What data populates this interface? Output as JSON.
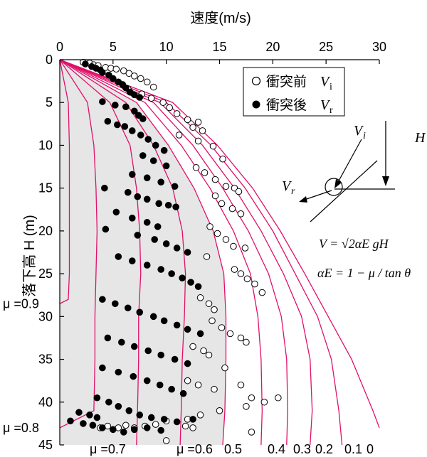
{
  "chart_data": {
    "type": "scatter",
    "title": "",
    "xlabel": "速度(m/s)",
    "ylabel": "落下高 H (m)",
    "xlim": [
      0,
      30
    ],
    "ylim": [
      0,
      45
    ],
    "y_inverted": true,
    "x_axis_position": "top",
    "x_ticks": [
      "0",
      "5",
      "10",
      "15",
      "20",
      "25",
      "30"
    ],
    "y_ticks": [
      "0",
      "5",
      "10",
      "15",
      "20",
      "25",
      "30",
      "35",
      "40",
      "45"
    ],
    "legend": {
      "placement": "top-right",
      "entries": [
        {
          "symbol": "○",
          "text": "衝突前",
          "var": "V",
          "sub": "i"
        },
        {
          "symbol": "●",
          "text": "衝突後",
          "var": "V",
          "sub": "r"
        }
      ]
    },
    "curve_color": "#e0106a",
    "shaded_region_color": "#e6e6e6",
    "mu_labels_left": [
      {
        "text": "μ =0.9",
        "y": 28.5
      },
      {
        "text": "μ =0.8",
        "y": 43
      }
    ],
    "mu_labels_bottom": [
      "μ =0.7",
      "μ =0.6",
      "0.5",
      "0.4",
      "0.3",
      "0.2",
      "0.1",
      "0"
    ],
    "curves": [
      {
        "mu": "0",
        "points": [
          [
            0,
            0
          ],
          [
            10.6,
            5
          ],
          [
            14.8,
            10
          ],
          [
            18.1,
            15
          ],
          [
            20.7,
            20
          ],
          [
            23.0,
            25
          ],
          [
            25.2,
            30
          ],
          [
            27.4,
            35
          ],
          [
            29.4,
            41
          ],
          [
            30,
            43
          ]
        ]
      },
      {
        "mu": "0.1",
        "points": [
          [
            0,
            0
          ],
          [
            10.0,
            5
          ],
          [
            14.2,
            10
          ],
          [
            17.4,
            15
          ],
          [
            20.0,
            20
          ],
          [
            22.1,
            25
          ],
          [
            24.2,
            30
          ],
          [
            25.5,
            35
          ],
          [
            26.2,
            41
          ],
          [
            26.5,
            45
          ]
        ]
      },
      {
        "mu": "0.2",
        "points": [
          [
            0,
            0
          ],
          [
            9.4,
            5
          ],
          [
            13.4,
            10
          ],
          [
            16.4,
            15
          ],
          [
            18.9,
            20
          ],
          [
            21.0,
            25
          ],
          [
            22.7,
            30
          ],
          [
            23.5,
            35
          ],
          [
            23.7,
            41
          ],
          [
            23.5,
            45
          ]
        ]
      },
      {
        "mu": "0.3",
        "points": [
          [
            0,
            0
          ],
          [
            8.8,
            5
          ],
          [
            12.5,
            10
          ],
          [
            15.3,
            15
          ],
          [
            17.7,
            20
          ],
          [
            19.6,
            25
          ],
          [
            20.8,
            30
          ],
          [
            21.3,
            35
          ],
          [
            21.4,
            41
          ],
          [
            21.3,
            45
          ]
        ]
      },
      {
        "mu": "0.4",
        "points": [
          [
            0,
            0
          ],
          [
            8.0,
            5
          ],
          [
            11.4,
            10
          ],
          [
            14.1,
            15
          ],
          [
            16.3,
            20
          ],
          [
            17.9,
            25
          ],
          [
            18.6,
            30
          ],
          [
            18.9,
            35
          ],
          [
            19.0,
            41
          ],
          [
            18.9,
            45
          ]
        ]
      },
      {
        "mu": "0.5",
        "points": [
          [
            0,
            0
          ],
          [
            7.2,
            5
          ],
          [
            10.2,
            10
          ],
          [
            12.6,
            15
          ],
          [
            14.4,
            20
          ],
          [
            15.4,
            25
          ],
          [
            15.6,
            30
          ],
          [
            15.6,
            35
          ],
          [
            15.5,
            41
          ],
          [
            15.3,
            45
          ]
        ]
      },
      {
        "mu": "0.6",
        "points": [
          [
            0,
            0
          ],
          [
            6.2,
            5
          ],
          [
            8.8,
            10
          ],
          [
            10.6,
            15
          ],
          [
            11.5,
            20
          ],
          [
            11.8,
            25
          ],
          [
            11.7,
            30
          ],
          [
            11.5,
            35
          ],
          [
            11.4,
            41
          ],
          [
            11.3,
            45
          ]
        ]
      },
      {
        "mu": "0.7",
        "points": [
          [
            0,
            0
          ],
          [
            4.7,
            5
          ],
          [
            6.6,
            10
          ],
          [
            7.2,
            15
          ],
          [
            7.5,
            20
          ],
          [
            7.6,
            25
          ],
          [
            7.4,
            30
          ],
          [
            7.4,
            35
          ],
          [
            7.3,
            41
          ],
          [
            7.2,
            45
          ]
        ]
      },
      {
        "mu": "0.8",
        "points": [
          [
            0,
            0
          ],
          [
            2.6,
            5
          ],
          [
            3.2,
            10
          ],
          [
            3.4,
            15
          ],
          [
            3.5,
            20
          ],
          [
            3.4,
            25
          ],
          [
            3.3,
            30
          ],
          [
            3.3,
            35
          ],
          [
            3.2,
            41
          ],
          [
            0,
            43
          ]
        ]
      },
      {
        "mu": "0.9",
        "points": [
          [
            0,
            0
          ],
          [
            0.8,
            5
          ],
          [
            0.9,
            10
          ],
          [
            0.9,
            15
          ],
          [
            0.9,
            20
          ],
          [
            0.9,
            25
          ],
          [
            0.8,
            28
          ],
          [
            0,
            28.5
          ]
        ]
      }
    ],
    "series": [
      {
        "name": "衝突前Vi",
        "marker": "open-circle",
        "points": [
          [
            2.2,
            0.3
          ],
          [
            2.8,
            0.4
          ],
          [
            3.2,
            0.6
          ],
          [
            3.6,
            0.7
          ],
          [
            4.3,
            0.9
          ],
          [
            4.8,
            1.0
          ],
          [
            5.3,
            1.1
          ],
          [
            6.0,
            1.3
          ],
          [
            6.5,
            1.6
          ],
          [
            7.0,
            1.9
          ],
          [
            7.6,
            2.2
          ],
          [
            8.2,
            2.6
          ],
          [
            8.8,
            3.2
          ],
          [
            6.4,
            3.4
          ],
          [
            7.7,
            4.0
          ],
          [
            8.6,
            4.5
          ],
          [
            9.7,
            5.0
          ],
          [
            10.3,
            5.6
          ],
          [
            11.0,
            6.3
          ],
          [
            12.0,
            7.0
          ],
          [
            13.0,
            7.3
          ],
          [
            12.5,
            7.9
          ],
          [
            13.4,
            8.3
          ],
          [
            11.2,
            8.8
          ],
          [
            13.0,
            9.5
          ],
          [
            14.4,
            10.1
          ],
          [
            15.3,
            11.6
          ],
          [
            12.8,
            12.6
          ],
          [
            13.6,
            13.2
          ],
          [
            14.6,
            14.0
          ],
          [
            15.6,
            14.8
          ],
          [
            16.4,
            15.0
          ],
          [
            16.8,
            15.4
          ],
          [
            14.6,
            15.9
          ],
          [
            15.2,
            16.8
          ],
          [
            16.2,
            17.4
          ],
          [
            17.0,
            18.0
          ],
          [
            14.1,
            19.5
          ],
          [
            14.8,
            20.3
          ],
          [
            15.6,
            21.0
          ],
          [
            16.3,
            21.8
          ],
          [
            17.4,
            22.0
          ],
          [
            13.8,
            23.0
          ],
          [
            16.4,
            24.5
          ],
          [
            17.0,
            25.0
          ],
          [
            17.6,
            25.6
          ],
          [
            18.3,
            26.2
          ],
          [
            19.0,
            27.2
          ],
          [
            13.2,
            27.8
          ],
          [
            14.0,
            28.5
          ],
          [
            14.5,
            29.2
          ],
          [
            14.3,
            30.5
          ],
          [
            15.2,
            31.3
          ],
          [
            16.0,
            32.0
          ],
          [
            17.0,
            32.5
          ],
          [
            17.5,
            33.0
          ],
          [
            12.5,
            33.5
          ],
          [
            13.5,
            34.0
          ],
          [
            14.0,
            34.5
          ],
          [
            15.5,
            36.0
          ],
          [
            12.0,
            37.5
          ],
          [
            13.0,
            38.0
          ],
          [
            14.5,
            38.5
          ],
          [
            17.0,
            38.0
          ],
          [
            18.0,
            39.5
          ],
          [
            19.2,
            40.0
          ],
          [
            20.5,
            39.5
          ],
          [
            17.5,
            40.5
          ],
          [
            15.0,
            41.0
          ],
          [
            13.2,
            41.5
          ],
          [
            12.0,
            42.0
          ],
          [
            10.0,
            42.2
          ],
          [
            9.0,
            42.6
          ],
          [
            8.0,
            42.8
          ],
          [
            7.0,
            43.0
          ],
          [
            6.2,
            42.7
          ],
          [
            5.5,
            43.0
          ],
          [
            4.5,
            42.8
          ],
          [
            3.8,
            43.0
          ],
          [
            11.8,
            42.8
          ],
          [
            12.5,
            43.0
          ],
          [
            18.0,
            43.5
          ],
          [
            10.0,
            44.5
          ]
        ]
      },
      {
        "name": "衝突後Vr",
        "marker": "filled-circle",
        "points": [
          [
            2.4,
            0.5
          ],
          [
            3.0,
            0.8
          ],
          [
            3.4,
            1.0
          ],
          [
            3.8,
            1.2
          ],
          [
            4.0,
            1.5
          ],
          [
            4.6,
            1.8
          ],
          [
            5.0,
            2.2
          ],
          [
            5.5,
            2.6
          ],
          [
            5.9,
            2.9
          ],
          [
            6.2,
            3.3
          ],
          [
            6.6,
            3.8
          ],
          [
            7.0,
            4.1
          ],
          [
            7.5,
            4.4
          ],
          [
            4.0,
            4.9
          ],
          [
            5.2,
            5.3
          ],
          [
            6.2,
            5.5
          ],
          [
            7.0,
            6.0
          ],
          [
            7.4,
            6.5
          ],
          [
            7.8,
            6.9
          ],
          [
            4.5,
            7.2
          ],
          [
            5.4,
            7.6
          ],
          [
            6.1,
            7.8
          ],
          [
            6.8,
            8.3
          ],
          [
            7.6,
            8.8
          ],
          [
            8.3,
            9.3
          ],
          [
            9.0,
            10.0
          ],
          [
            9.8,
            10.6
          ],
          [
            7.8,
            11.2
          ],
          [
            8.8,
            11.8
          ],
          [
            10.0,
            12.4
          ],
          [
            6.8,
            13.4
          ],
          [
            8.2,
            13.8
          ],
          [
            9.5,
            14.3
          ],
          [
            10.8,
            14.8
          ],
          [
            4.2,
            15.0
          ],
          [
            6.4,
            15.5
          ],
          [
            7.3,
            16.0
          ],
          [
            8.2,
            16.3
          ],
          [
            9.3,
            16.8
          ],
          [
            10.2,
            17.0
          ],
          [
            10.9,
            17.2
          ],
          [
            5.3,
            17.8
          ],
          [
            6.8,
            18.5
          ],
          [
            8.2,
            19.0
          ],
          [
            9.2,
            19.5
          ],
          [
            4.3,
            19.8
          ],
          [
            7.3,
            20.5
          ],
          [
            8.9,
            21.0
          ],
          [
            10.0,
            21.5
          ],
          [
            11.0,
            22.0
          ],
          [
            12.0,
            22.5
          ],
          [
            5.5,
            23.0
          ],
          [
            6.8,
            23.5
          ],
          [
            8.2,
            24.0
          ],
          [
            9.5,
            24.5
          ],
          [
            10.5,
            25.0
          ],
          [
            11.5,
            25.5
          ],
          [
            12.3,
            26.0
          ],
          [
            13.0,
            26.5
          ],
          [
            4.0,
            28.0
          ],
          [
            5.2,
            28.5
          ],
          [
            6.4,
            29.0
          ],
          [
            7.5,
            29.5
          ],
          [
            8.8,
            30.0
          ],
          [
            9.8,
            30.5
          ],
          [
            11.0,
            31.0
          ],
          [
            12.0,
            31.5
          ],
          [
            13.2,
            32.0
          ],
          [
            4.5,
            32.5
          ],
          [
            5.8,
            33.0
          ],
          [
            7.0,
            33.5
          ],
          [
            8.3,
            34.0
          ],
          [
            9.5,
            34.5
          ],
          [
            10.8,
            35.0
          ],
          [
            12.0,
            35.5
          ],
          [
            4.0,
            36.0
          ],
          [
            5.5,
            36.5
          ],
          [
            6.9,
            37.0
          ],
          [
            8.2,
            37.5
          ],
          [
            9.4,
            38.0
          ],
          [
            10.5,
            38.5
          ],
          [
            11.6,
            39.0
          ],
          [
            3.5,
            39.5
          ],
          [
            4.6,
            40.0
          ],
          [
            5.5,
            40.5
          ],
          [
            6.5,
            41.0
          ],
          [
            7.5,
            41.5
          ],
          [
            8.6,
            41.8
          ],
          [
            9.8,
            42.0
          ],
          [
            11.0,
            42.3
          ],
          [
            12.5,
            42.0
          ],
          [
            1.0,
            42.2
          ],
          [
            2.2,
            42.5
          ],
          [
            3.1,
            42.7
          ],
          [
            4.0,
            43.0
          ],
          [
            5.0,
            43.2
          ],
          [
            6.0,
            43.5
          ],
          [
            7.0,
            43.2
          ],
          [
            8.2,
            43.0
          ],
          [
            9.5,
            43.3
          ],
          [
            1.8,
            41.2
          ],
          [
            2.8,
            41.5
          ],
          [
            3.5,
            41.8
          ]
        ]
      }
    ],
    "diagram": {
      "labels": {
        "H": "H",
        "Vi": "V",
        "Vi_sub": "i",
        "Vr": "V",
        "Vr_sub": "r"
      },
      "formula1": "V = √2αE gH",
      "formula2": "αE = 1 − μ / tan θ"
    }
  }
}
